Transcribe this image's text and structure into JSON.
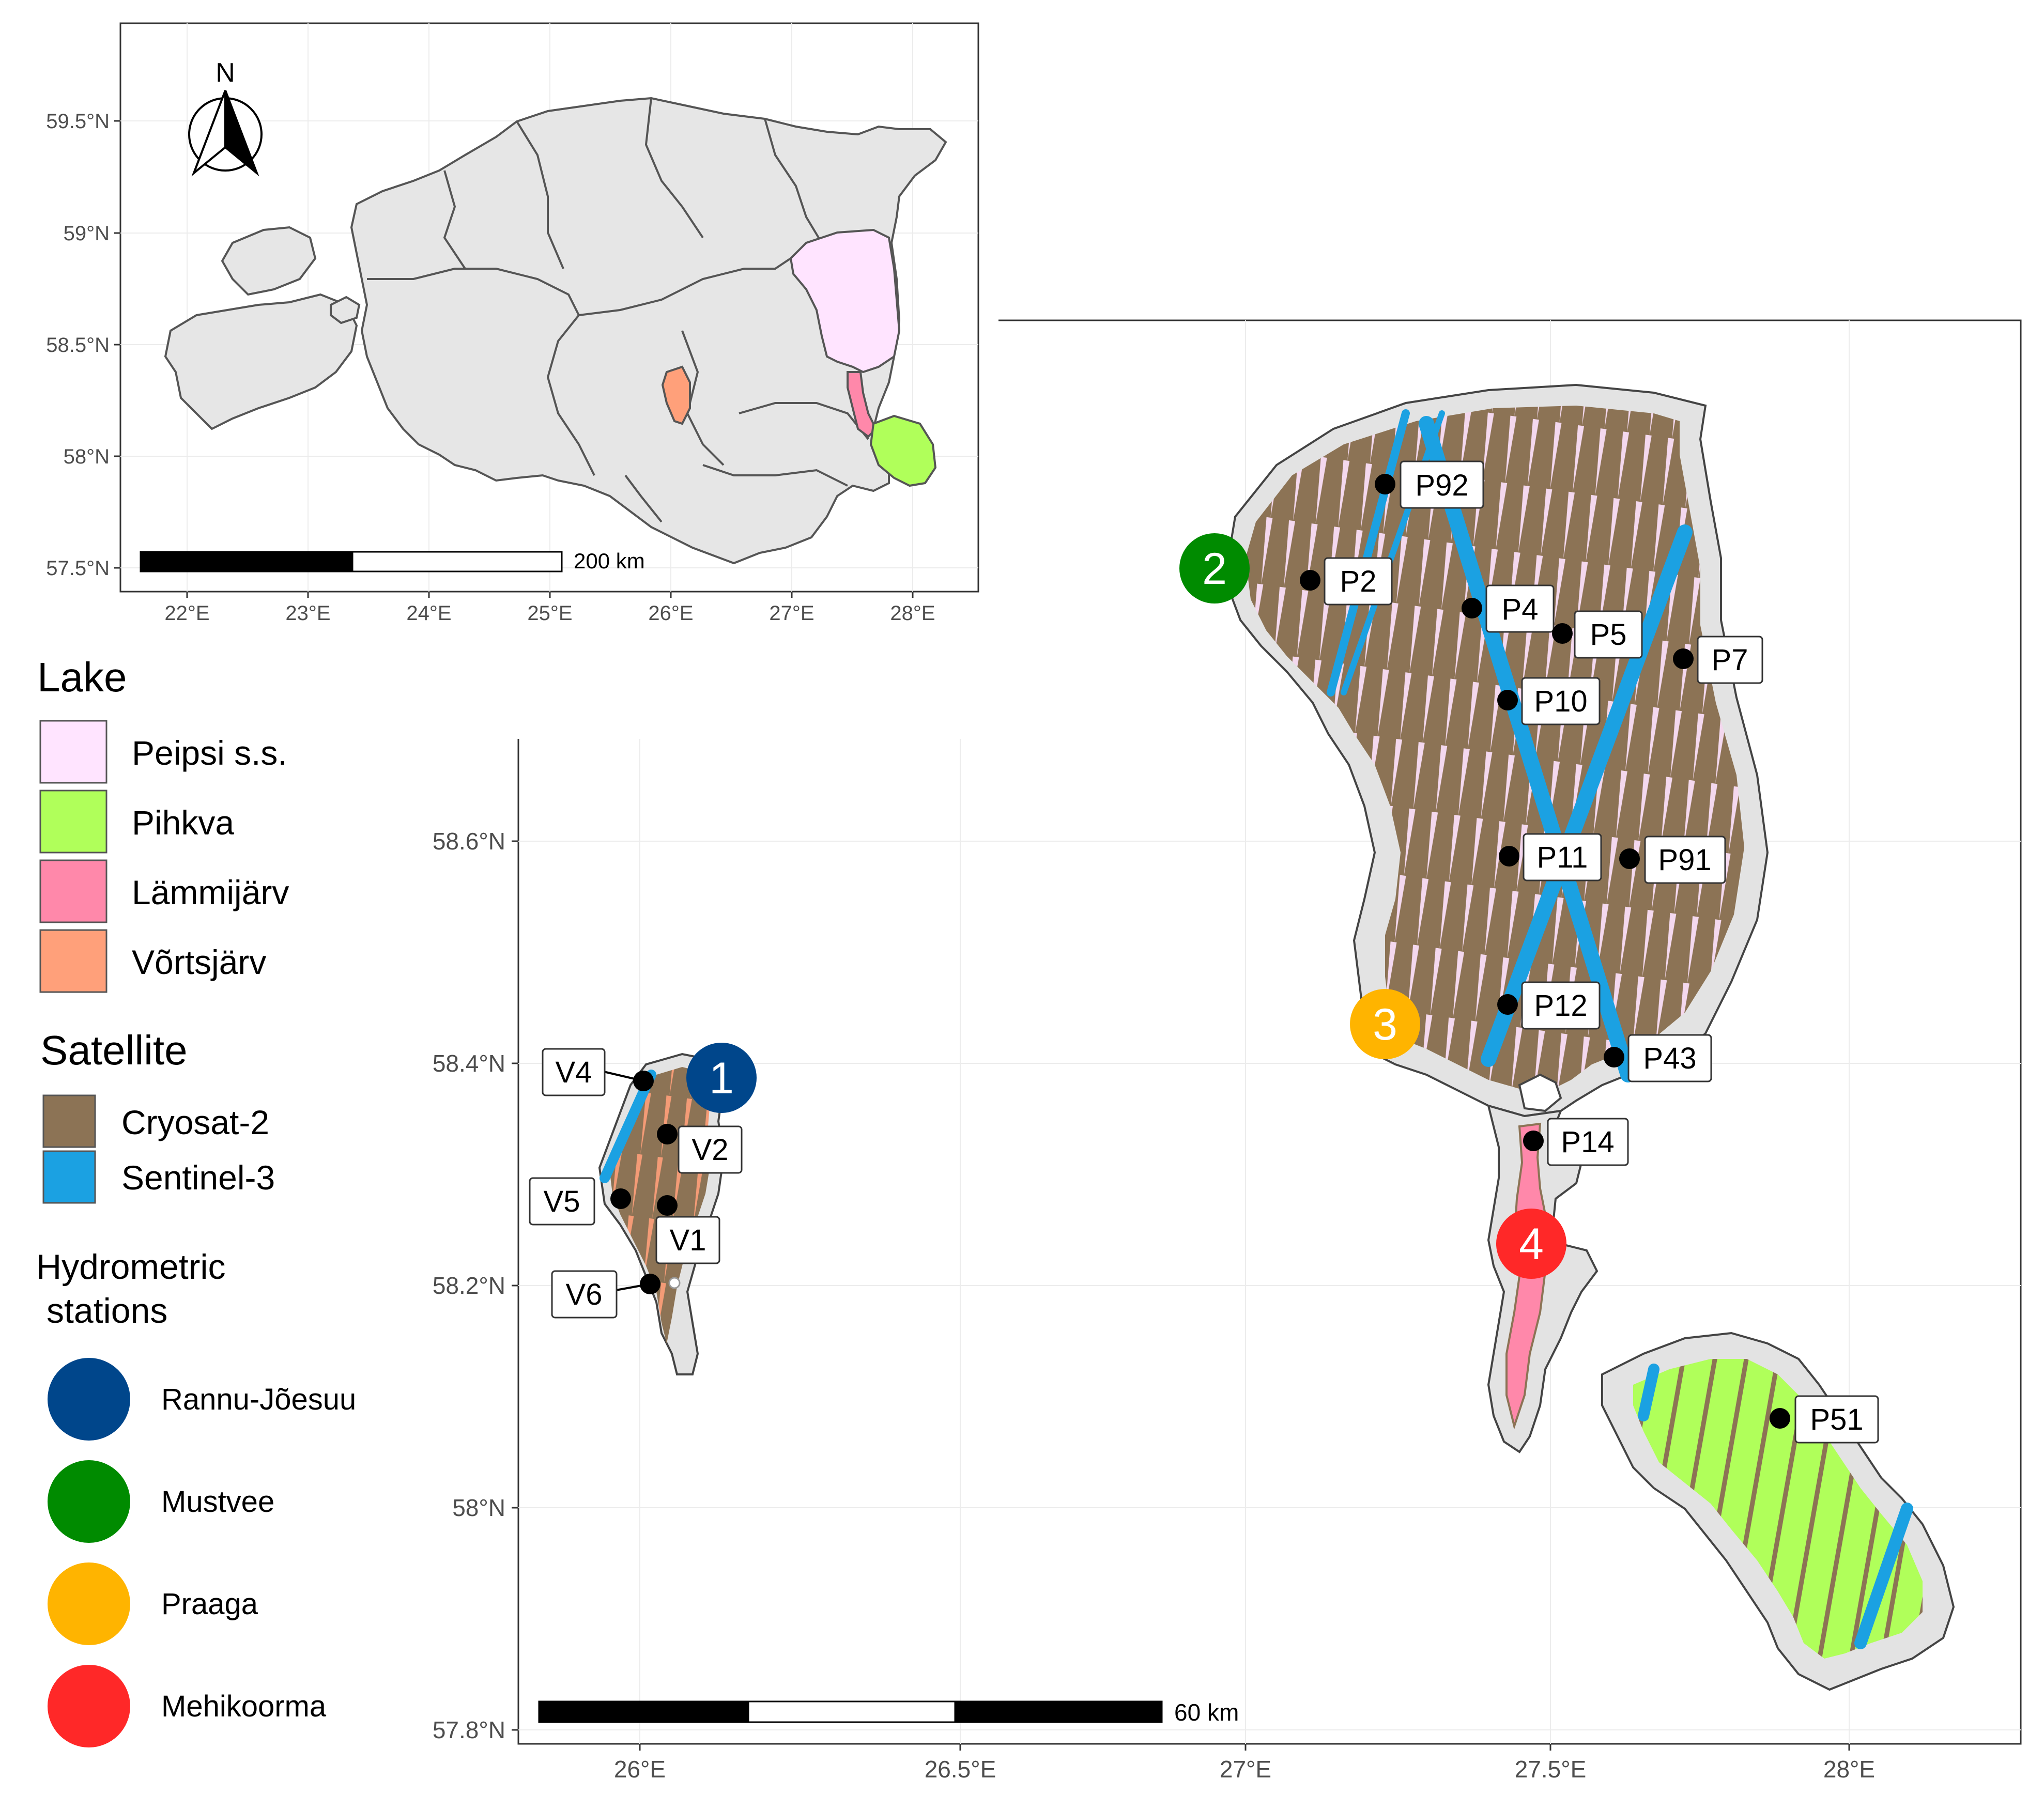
{
  "inset": {
    "north_label": "N",
    "y_ticks": [
      "59.5°N",
      "59°N",
      "58.5°N",
      "58°N",
      "57.5°N"
    ],
    "x_ticks": [
      "22°E",
      "23°E",
      "24°E",
      "25°E",
      "26°E",
      "27°E",
      "28°E"
    ],
    "scale_label": "200 km"
  },
  "main": {
    "y_ticks": [
      "58.6°N",
      "58.4°N",
      "58.2°N",
      "58°N",
      "57.8°N"
    ],
    "x_ticks": [
      "26°E",
      "26.5°E",
      "27°E",
      "27.5°E",
      "28°E"
    ],
    "scale_label": "60 km",
    "points": [
      {
        "label": "P92"
      },
      {
        "label": "P2"
      },
      {
        "label": "P4"
      },
      {
        "label": "P5"
      },
      {
        "label": "P7"
      },
      {
        "label": "P10"
      },
      {
        "label": "P11"
      },
      {
        "label": "P91"
      },
      {
        "label": "P12"
      },
      {
        "label": "P43"
      },
      {
        "label": "P14"
      },
      {
        "label": "P51"
      },
      {
        "label": "V4"
      },
      {
        "label": "V2"
      },
      {
        "label": "V5"
      },
      {
        "label": "V1"
      },
      {
        "label": "V6"
      }
    ],
    "station_markers": [
      "1",
      "2",
      "3",
      "4"
    ]
  },
  "legend": {
    "lake": {
      "title": "Lake",
      "items": [
        {
          "label": "Peipsi s.s.",
          "color": "#FFE4FF"
        },
        {
          "label": "Pihkva",
          "color": "#B0FF5A"
        },
        {
          "label": "Lämmijärv",
          "color": "#FF88AA"
        },
        {
          "label": "Võrtsjärv",
          "color": "#FFA07A"
        }
      ]
    },
    "satellite": {
      "title": "Satellite",
      "items": [
        {
          "label": "Cryosat-2",
          "color": "#8C7355"
        },
        {
          "label": "Sentinel-3",
          "color": "#1BA1E2"
        }
      ]
    },
    "stations": {
      "title_line1": "Hydrometric",
      "title_line2": "stations",
      "items": [
        {
          "label": "Rannu-Jõesuu",
          "color": "#00468B"
        },
        {
          "label": "Mustvee",
          "color": "#008B00"
        },
        {
          "label": "Praaga",
          "color": "#FFB400"
        },
        {
          "label": "Mehikoorma",
          "color": "#FF2828"
        }
      ]
    }
  }
}
